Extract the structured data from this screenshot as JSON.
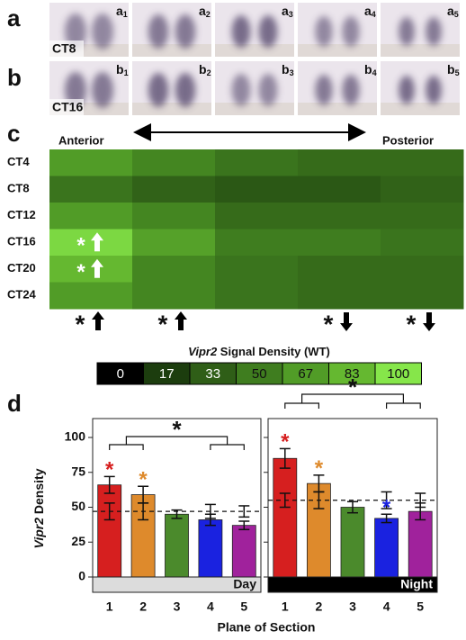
{
  "panels": {
    "a": "a",
    "b": "b",
    "c": "c",
    "d": "d"
  },
  "images": {
    "a": {
      "letter": "a",
      "subs": [
        "1",
        "2",
        "3",
        "4",
        "5"
      ],
      "tag": "CT8"
    },
    "b": {
      "letter": "b",
      "subs": [
        "1",
        "2",
        "3",
        "4",
        "5"
      ],
      "tag": "CT16"
    }
  },
  "heatmap": {
    "left_label": "Anterior",
    "right_label": "Posterior",
    "rows": [
      "CT4",
      "CT8",
      "CT12",
      "CT16",
      "CT20",
      "CT24"
    ],
    "values": [
      [
        67,
        55,
        45,
        40,
        40
      ],
      [
        45,
        35,
        30,
        30,
        35
      ],
      [
        67,
        55,
        40,
        40,
        40
      ],
      [
        95,
        70,
        50,
        50,
        45
      ],
      [
        83,
        55,
        45,
        40,
        40
      ],
      [
        67,
        55,
        45,
        40,
        40
      ]
    ],
    "symbol": "*",
    "cell_marks": [
      {
        "row": 3,
        "col": 0,
        "direction": "up"
      },
      {
        "row": 4,
        "col": 0,
        "direction": "up"
      }
    ],
    "column_marks": [
      "up",
      "up",
      null,
      "down",
      "down"
    ]
  },
  "colorbar": {
    "title_italic": "Vipr2",
    "title_rest": " Signal Density (WT)",
    "ticks": [
      0,
      17,
      33,
      50,
      67,
      83,
      100
    ],
    "colors": [
      "#000000",
      "#1c3d0e",
      "#2f5e17",
      "#3f7d1f",
      "#519c27",
      "#65b830",
      "#86e64a"
    ]
  },
  "chart_data": {
    "type": "bar",
    "y_label_italic": "Vipr2",
    "y_label_rest": " Density",
    "x_label": "Plane of Section",
    "ylim": [
      0,
      100
    ],
    "yticks": [
      0,
      25,
      50,
      75,
      100
    ],
    "categories": [
      "1",
      "2",
      "3",
      "4",
      "5"
    ],
    "colors": [
      "#d61f1f",
      "#de8a2c",
      "#4b8a2c",
      "#1a22e0",
      "#a0229c"
    ],
    "symbol": "*",
    "panels": [
      {
        "name": "Day",
        "values": [
          66,
          59,
          45,
          41,
          37
        ],
        "errors": [
          6,
          6,
          3,
          4,
          3
        ],
        "reference": 47,
        "reference_errors": [
          6,
          6,
          null,
          5,
          4
        ],
        "stars": [
          true,
          true,
          false,
          false,
          false
        ]
      },
      {
        "name": "Night",
        "values": [
          85,
          67,
          50,
          42,
          47
        ],
        "errors": [
          7,
          6,
          4,
          3,
          6
        ],
        "reference": 55,
        "reference_errors": [
          5,
          6,
          null,
          6,
          5
        ],
        "stars": [
          true,
          true,
          false,
          true,
          false
        ]
      }
    ]
  }
}
